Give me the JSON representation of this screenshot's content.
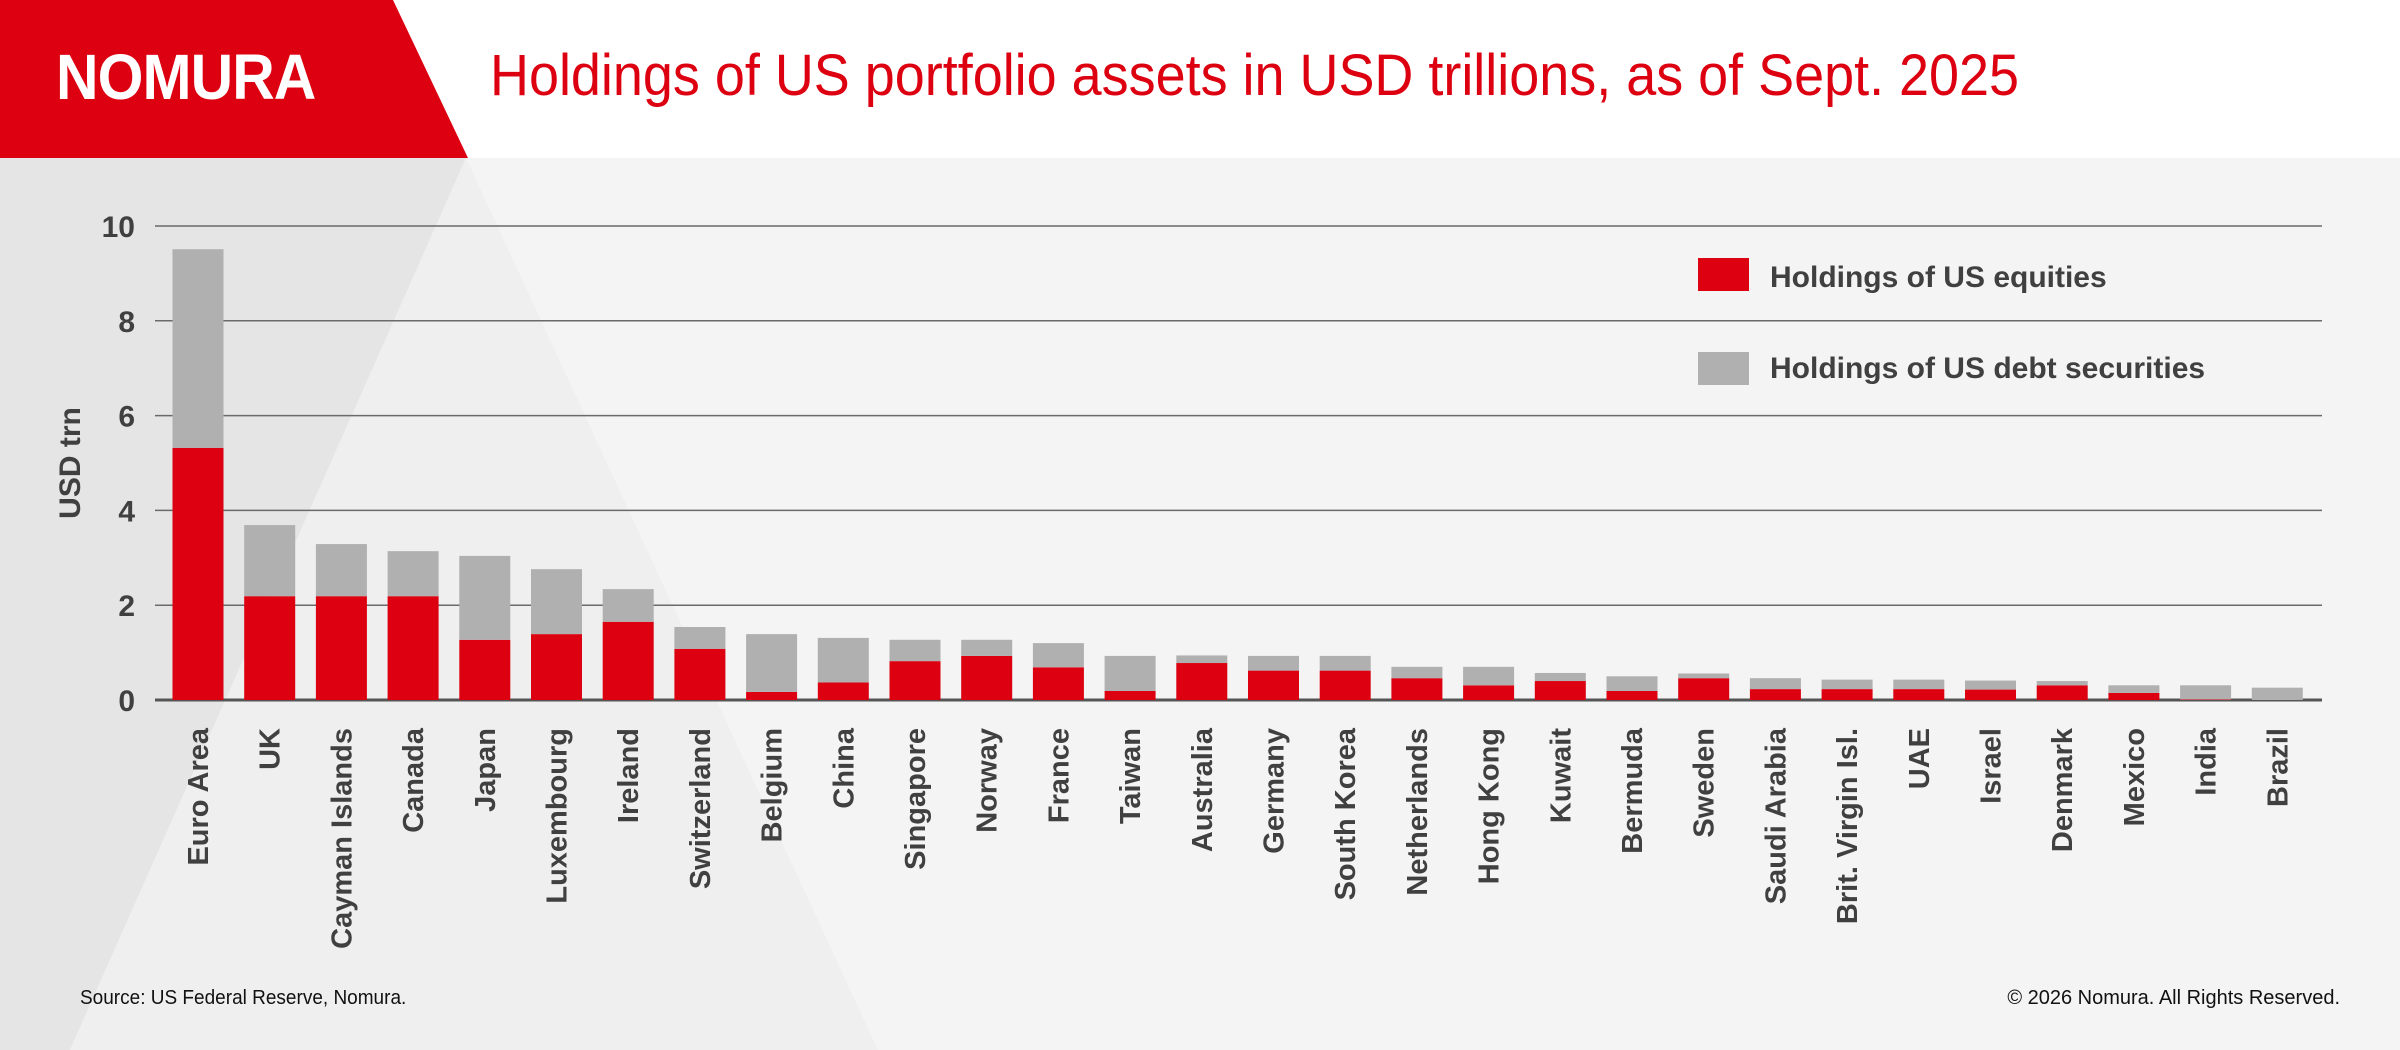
{
  "header": {
    "logo": "NOMURA",
    "title": "Holdings of US portfolio assets in USD trillions, as of Sept. 2025"
  },
  "colors": {
    "brand_red": "#dc0010",
    "debt_gray": "#b0b0b0",
    "text_dark": "#404040"
  },
  "footer": {
    "source": "Source: US Federal Reserve, Nomura.",
    "copyright": "© 2026 Nomura. All Rights Reserved."
  },
  "chart_data": {
    "type": "bar",
    "stacked": true,
    "title": "Holdings of US portfolio assets in USD trillions, as of Sept. 2025",
    "xlabel": "",
    "ylabel": "USD trn",
    "ylim": [
      0,
      10
    ],
    "yticks": [
      0,
      2,
      4,
      6,
      8,
      10
    ],
    "grid": true,
    "legend_position": "top-right",
    "categories": [
      "Euro Area",
      "UK",
      "Cayman Islands",
      "Canada",
      "Japan",
      "Luxembourg",
      "Ireland",
      "Switzerland",
      "Belgium",
      "China",
      "Singapore",
      "Norway",
      "France",
      "Taiwan",
      "Australia",
      "Germany",
      "South Korea",
      "Netherlands",
      "Hong Kong",
      "Kuwait",
      "Bermuda",
      "Sweden",
      "Saudi Arabia",
      "Brit. Virgin Isl.",
      "UAE",
      "Israel",
      "Denmark",
      "Mexico",
      "India",
      "Brazil"
    ],
    "series": [
      {
        "name": "Holdings of US equities",
        "color": "#dc0010",
        "values": [
          5.32,
          2.19,
          2.19,
          2.19,
          1.27,
          1.39,
          1.65,
          1.08,
          0.17,
          0.37,
          0.82,
          0.93,
          0.69,
          0.19,
          0.78,
          0.62,
          0.62,
          0.46,
          0.31,
          0.4,
          0.19,
          0.46,
          0.23,
          0.23,
          0.23,
          0.22,
          0.31,
          0.15,
          0.01,
          0.0
        ]
      },
      {
        "name": "Holdings of US debt securities",
        "color": "#b0b0b0",
        "values": [
          4.19,
          1.5,
          1.1,
          0.95,
          1.77,
          1.37,
          0.69,
          0.46,
          1.22,
          0.94,
          0.45,
          0.34,
          0.51,
          0.74,
          0.16,
          0.31,
          0.31,
          0.24,
          0.39,
          0.17,
          0.31,
          0.1,
          0.23,
          0.2,
          0.2,
          0.19,
          0.09,
          0.16,
          0.3,
          0.26
        ]
      }
    ]
  }
}
